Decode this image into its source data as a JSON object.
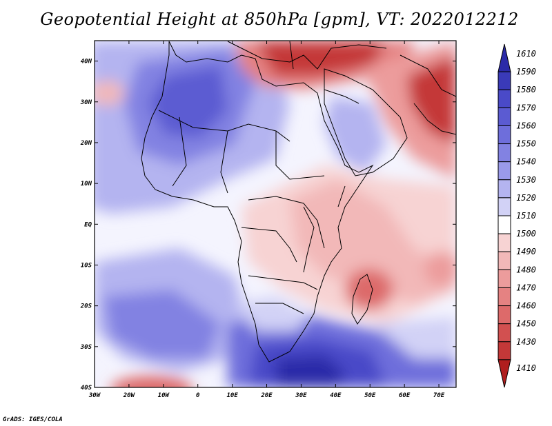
{
  "title": "Geopotential Height at 850hPa [gpm], VT: 2022012212",
  "credit": "GrADS: IGES/COLA",
  "map": {
    "lon_ticks": [
      "30W",
      "20W",
      "10W",
      "0",
      "10E",
      "20E",
      "30E",
      "40E",
      "50E",
      "60E",
      "70E"
    ],
    "lat_ticks": [
      "40N",
      "30N",
      "20N",
      "10N",
      "EQ",
      "10S",
      "20S",
      "30S",
      "40S"
    ],
    "lon_range": [
      -30,
      75
    ],
    "lat_range": [
      -40,
      45
    ],
    "variable": "Geopotential height at 850 hPa",
    "units": "gpm",
    "valid_time": "2022012212"
  },
  "colorbar": {
    "levels": [
      "1610",
      "1590",
      "1580",
      "1570",
      "1560",
      "1550",
      "1540",
      "1530",
      "1520",
      "1510",
      "1500",
      "1490",
      "1480",
      "1470",
      "1460",
      "1450",
      "1430",
      "1410"
    ],
    "colors": [
      "#2b2aa8",
      "#3a3ab8",
      "#4a4ac8",
      "#5b5bd2",
      "#6e6edb",
      "#8282e2",
      "#9a9aea",
      "#b4b4f0",
      "#d2d2f6",
      "#ffffff",
      "#f7d3d3",
      "#f2b8b8",
      "#ec9c9c",
      "#e58282",
      "#dd6a6a",
      "#d25050",
      "#c43838",
      "#b01e1e"
    ]
  }
}
